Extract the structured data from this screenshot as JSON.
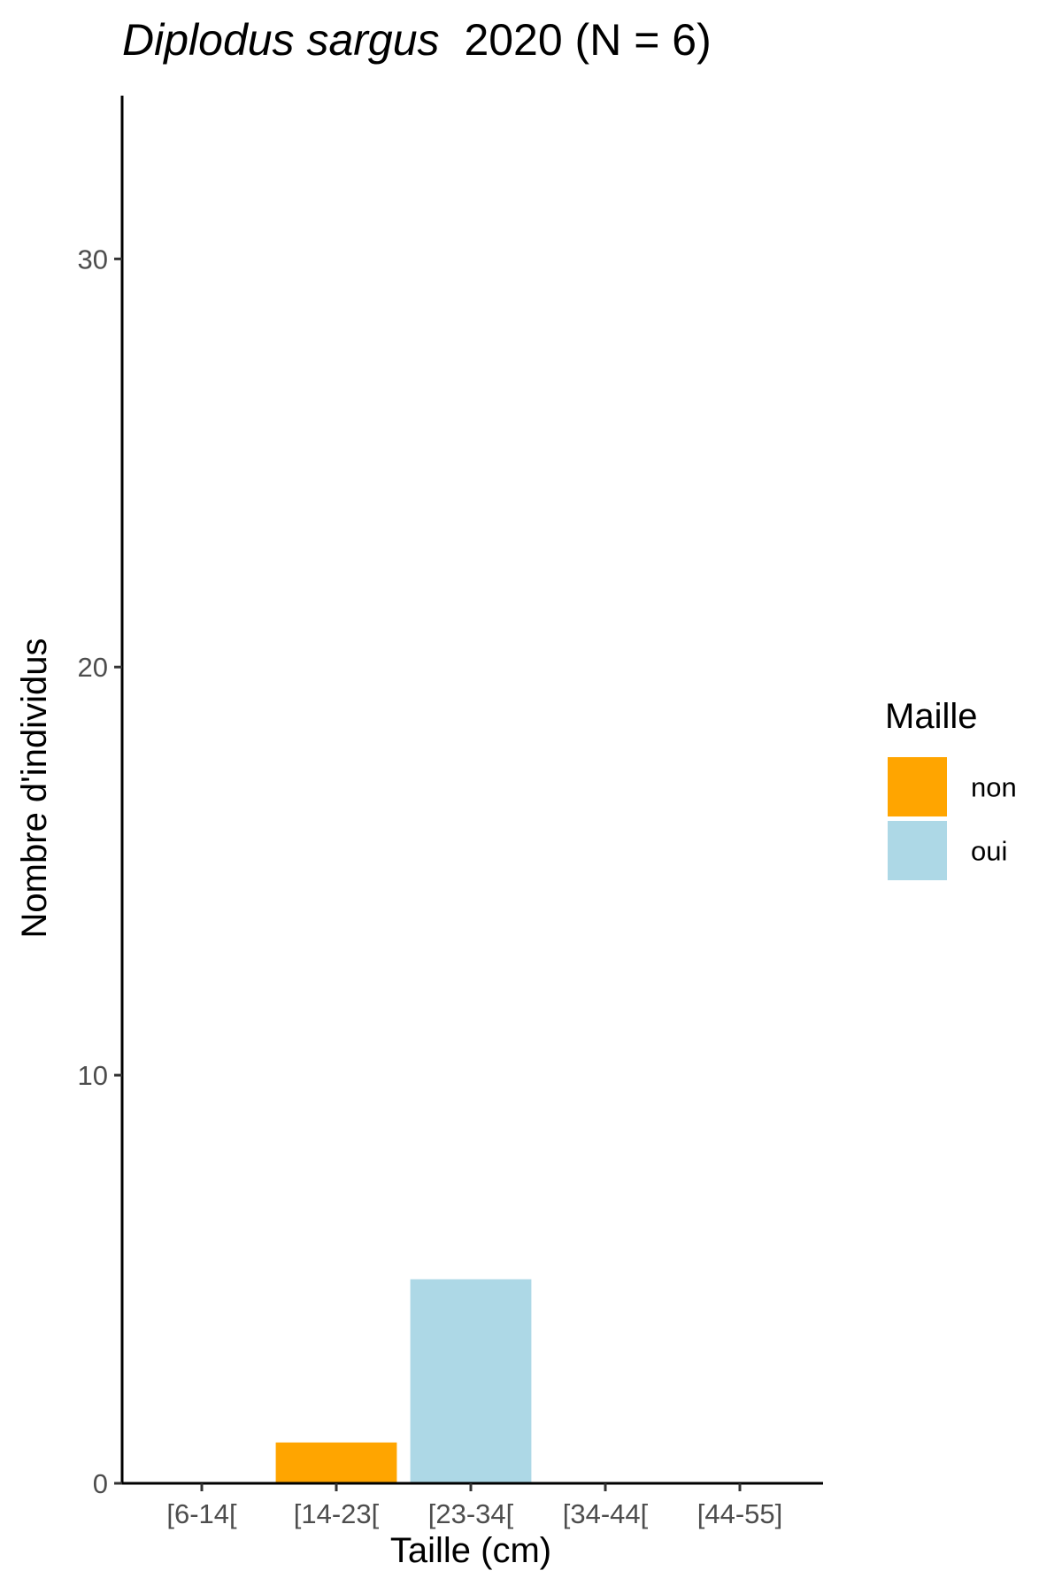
{
  "chart_data": {
    "type": "bar",
    "title": {
      "species": "Diplodus sargus",
      "rest": "2020 (N = 6)"
    },
    "xlabel": "Taille (cm)",
    "ylabel": "Nombre d'individus",
    "categories": [
      "[6-14[",
      "[14-23[",
      "[23-34[",
      "[34-44[",
      "[44-55]"
    ],
    "bars": [
      {
        "category": "[14-23[",
        "value": 1,
        "group": "non"
      },
      {
        "category": "[23-34[",
        "value": 5,
        "group": "oui"
      }
    ],
    "y_ticks": [
      0,
      10,
      20,
      30
    ],
    "ylim": [
      0,
      34
    ],
    "grid": false,
    "legend": {
      "title": "Maille",
      "position": "right",
      "entries": [
        {
          "label": "non",
          "color": "#FFA500"
        },
        {
          "label": "oui",
          "color": "#ADD8E6"
        }
      ]
    }
  }
}
